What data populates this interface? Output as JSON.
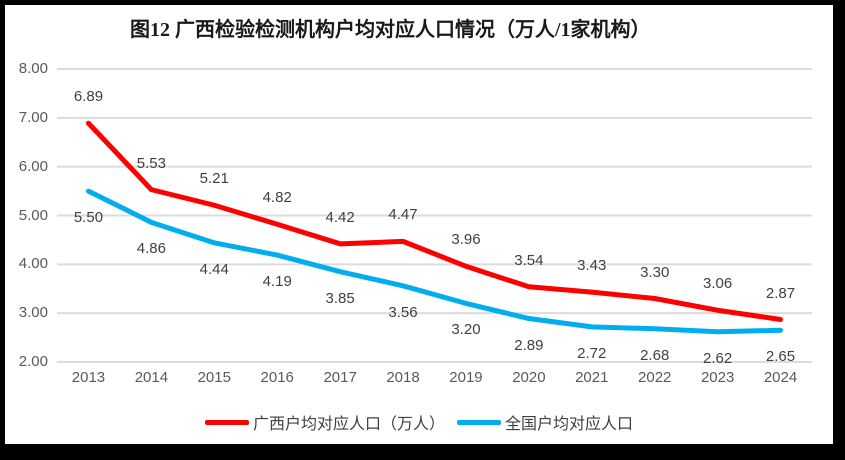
{
  "title": "图12 广西检验检测机构户均对应人口情况（万人/1家机构）",
  "chart_data": {
    "type": "line",
    "categories": [
      "2013",
      "2014",
      "2015",
      "2016",
      "2017",
      "2018",
      "2019",
      "2020",
      "2021",
      "2022",
      "2023",
      "2024"
    ],
    "series": [
      {
        "name": "广西户均对应人口（万人）",
        "color": "#FF0000",
        "values": [
          6.89,
          5.53,
          5.21,
          4.82,
          4.42,
          4.47,
          3.96,
          3.54,
          3.43,
          3.3,
          3.06,
          2.87
        ],
        "label_position": "above"
      },
      {
        "name": "全国户均对应人口",
        "color": "#00AEEF",
        "values": [
          5.5,
          4.86,
          4.44,
          4.19,
          3.85,
          3.56,
          3.2,
          2.89,
          2.72,
          2.68,
          2.62,
          2.65
        ],
        "label_position": "below"
      }
    ],
    "title": "图12 广西检验检测机构户均对应人口情况（万人/1家机构）",
    "xlabel": "",
    "ylabel": "",
    "ylim": [
      2,
      8
    ],
    "ytick_step": 1,
    "value_format_decimals": 2,
    "grid": true,
    "legend_position": "bottom",
    "colors": {
      "gridline": "#DCDCDC",
      "axis_text": "#595959",
      "data_label_text": "#404040",
      "frame": "#000000",
      "background": "#FFFFFF"
    }
  }
}
